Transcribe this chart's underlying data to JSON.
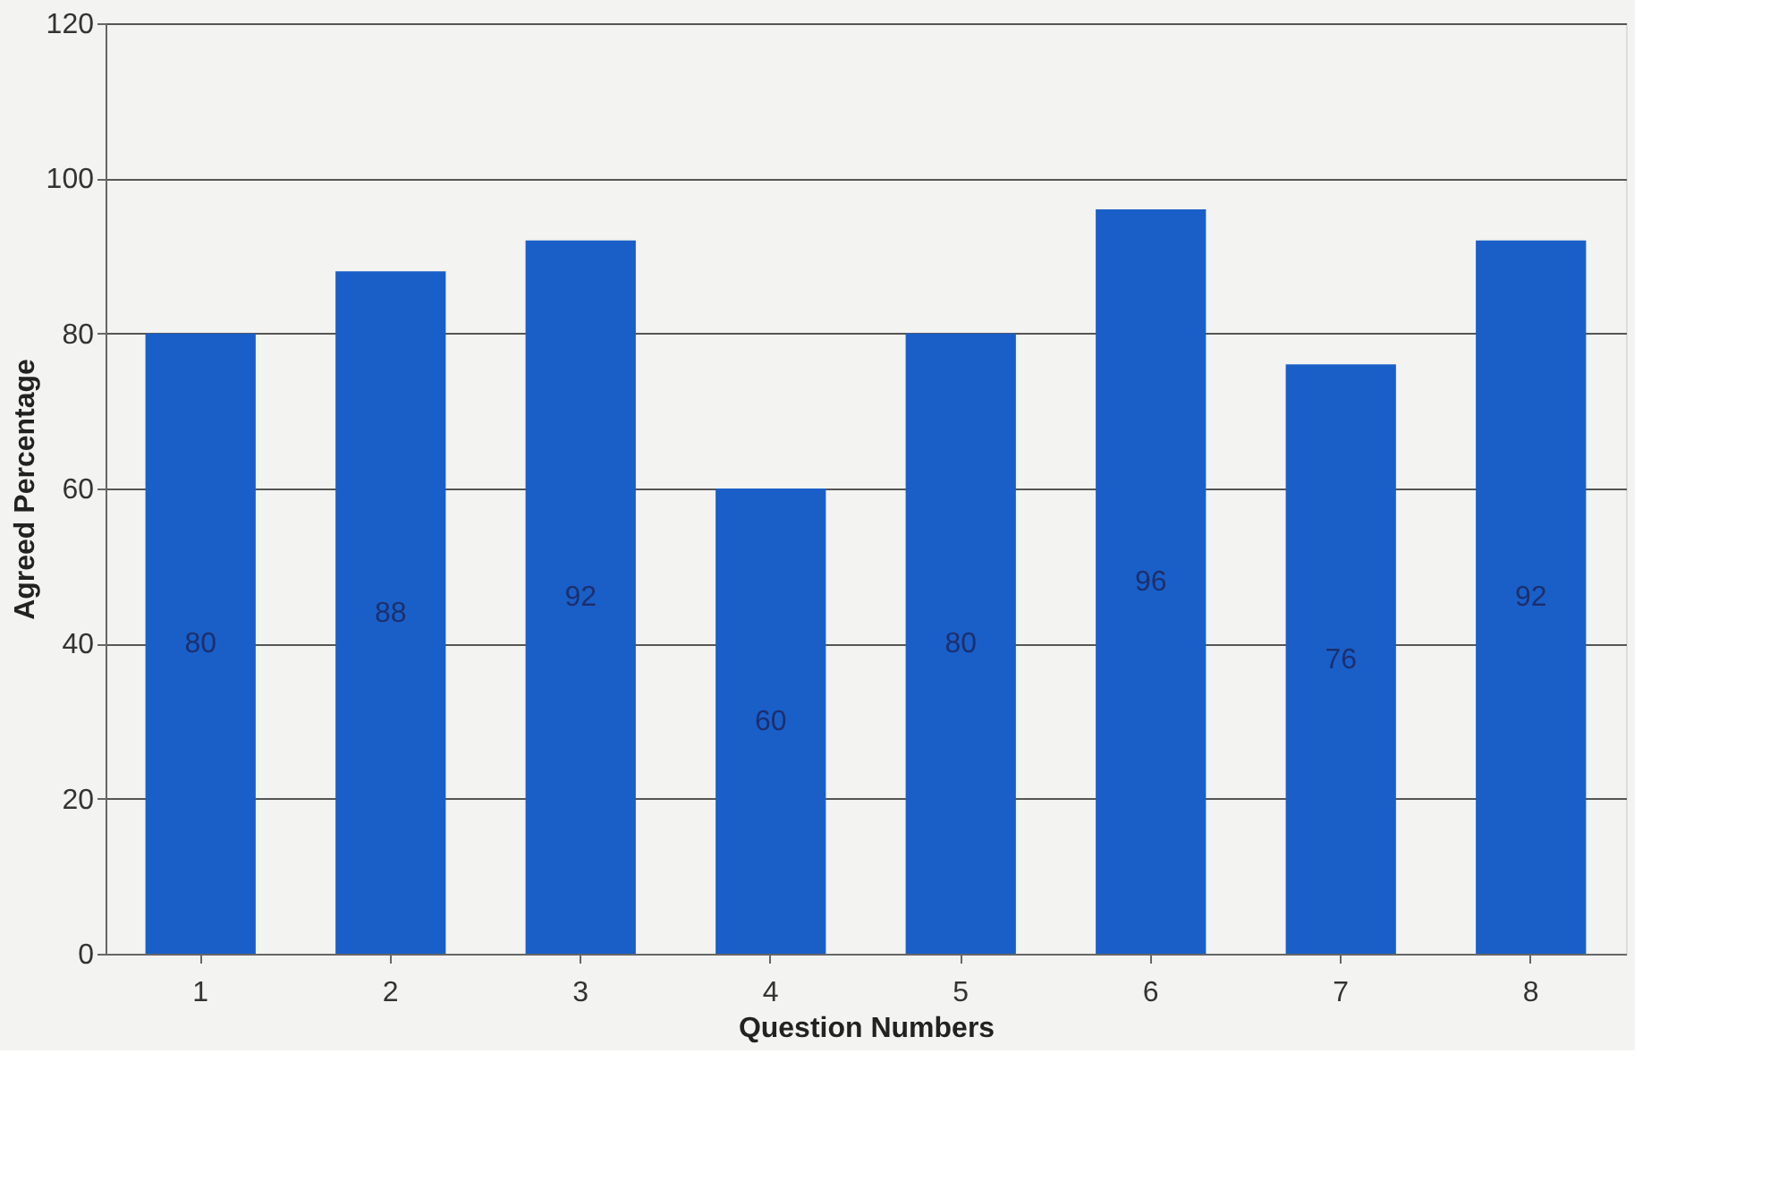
{
  "chart_data": {
    "type": "bar",
    "xlabel": "Question Numbers",
    "ylabel": "Agreed Percentage",
    "categories": [
      "1",
      "2",
      "3",
      "4",
      "5",
      "6",
      "7",
      "8"
    ],
    "values": [
      80,
      88,
      92,
      60,
      80,
      96,
      76,
      92
    ],
    "color": "#1a5fc8",
    "ylim": [
      0,
      120
    ],
    "yticks": [
      0,
      20,
      40,
      60,
      80,
      100,
      120
    ],
    "grid": "y",
    "data_labels": true
  }
}
